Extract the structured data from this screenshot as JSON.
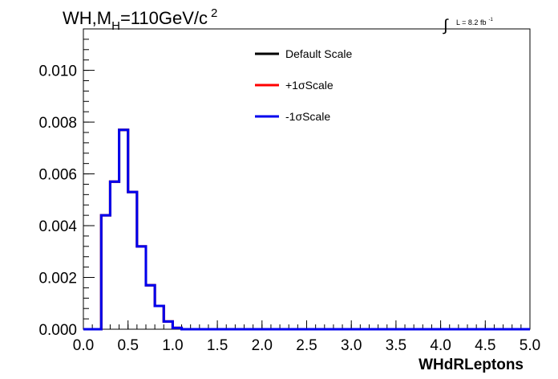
{
  "chart_data": {
    "type": "line",
    "title_main": "WH,M",
    "title_sub": "H",
    "title_rest": "=110GeV/c",
    "title_sup": "2",
    "lumi_label": "L = 8.2 fb",
    "lumi_sup": "-1",
    "xlabel": "WHdRLeptons",
    "xlim": [
      0.0,
      5.0
    ],
    "ylim": [
      0.0,
      0.0116
    ],
    "x_ticks": [
      "0.0",
      "0.5",
      "1.0",
      "1.5",
      "2.0",
      "2.5",
      "3.0",
      "3.5",
      "4.0",
      "4.5",
      "5.0"
    ],
    "y_ticks": [
      "0.000",
      "0.002",
      "0.004",
      "0.006",
      "0.008",
      "0.010"
    ],
    "bin_edges": [
      0.0,
      0.1,
      0.2,
      0.3,
      0.4,
      0.5,
      0.6,
      0.7,
      0.8,
      0.9,
      1.0,
      1.1,
      1.2,
      1.3,
      1.4,
      1.5,
      1.6,
      1.7,
      1.8,
      1.9,
      2.0,
      2.1,
      2.2,
      2.3,
      2.4,
      2.5,
      2.6,
      2.7,
      2.8,
      2.9,
      3.0,
      3.1,
      3.2,
      3.3,
      3.4,
      3.5,
      3.6,
      3.7,
      3.8,
      3.9,
      4.0,
      4.1,
      4.2,
      4.3,
      4.4,
      4.5,
      4.6,
      4.7,
      4.8,
      4.9,
      5.0
    ],
    "series": [
      {
        "name": "Default Scale",
        "color": "#000000",
        "values": [
          0,
          0,
          0.0044,
          0.0057,
          0.0077,
          0.0053,
          0.0032,
          0.0017,
          0.0009,
          0.0003,
          5e-05,
          0,
          0,
          0,
          0,
          0,
          0,
          0,
          0,
          0,
          0,
          0,
          0,
          0,
          0,
          0,
          0,
          0,
          0,
          0,
          0,
          0,
          0,
          0,
          0,
          0,
          0,
          0,
          0,
          0,
          0,
          0,
          0,
          0,
          0,
          0,
          0,
          0,
          0,
          0
        ]
      },
      {
        "name": "+1σScale",
        "color": "#ff0000",
        "values": [
          0,
          0,
          0.0044,
          0.0057,
          0.0077,
          0.0053,
          0.0032,
          0.0017,
          0.0009,
          0.0003,
          5e-05,
          0,
          0,
          0,
          0,
          0,
          0,
          0,
          0,
          0,
          0,
          0,
          0,
          0,
          0,
          0,
          0,
          0,
          0,
          0,
          0,
          0,
          0,
          0,
          0,
          0,
          0,
          0,
          0,
          0,
          0,
          0,
          0,
          0,
          0,
          0,
          0,
          0,
          0,
          0
        ]
      },
      {
        "name": "-1σScale",
        "color": "#0000ee",
        "values": [
          0,
          0,
          0.0044,
          0.0057,
          0.0077,
          0.0053,
          0.0032,
          0.0017,
          0.0009,
          0.0003,
          5e-05,
          0,
          0,
          0,
          0,
          0,
          0,
          0,
          0,
          0,
          0,
          0,
          0,
          0,
          0,
          0,
          0,
          0,
          0,
          0,
          0,
          0,
          0,
          0,
          0,
          0,
          0,
          0,
          0,
          0,
          0,
          0,
          0,
          0,
          0,
          0,
          0,
          0,
          0,
          0
        ]
      }
    ],
    "legend_position": "top-center"
  }
}
